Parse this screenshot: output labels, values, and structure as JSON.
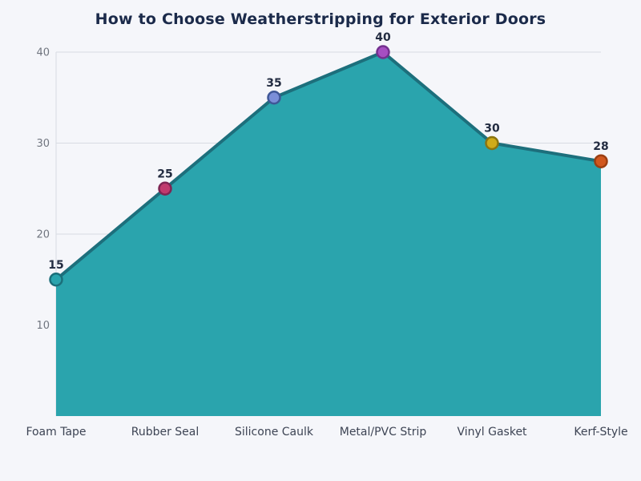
{
  "page": {
    "background_color": "#f5f6fa"
  },
  "chart_data": {
    "type": "area",
    "title": "How to Choose Weatherstripping for Exterior Doors",
    "categories": [
      "Foam Tape",
      "Rubber Seal",
      "Silicone Caulk",
      "Metal/PVC Strip",
      "Vinyl Gasket",
      "Kerf-Style"
    ],
    "values": [
      15,
      25,
      35,
      40,
      30,
      28
    ],
    "value_labels": [
      "15",
      "25",
      "35",
      "40",
      "30",
      "28"
    ],
    "xlabel": "",
    "ylabel": "",
    "yticks": [
      10,
      20,
      30,
      40
    ],
    "ylim": [
      0,
      40
    ],
    "grid": "horizontal",
    "legend_position": "none",
    "colors": {
      "background": "#f5f6fa",
      "area_fill": "#2aa4ad",
      "line": "#1d6f7c",
      "grid_line": "#d8dbe2",
      "axis_line": "#d8dbe2",
      "title_text": "#1b2a4a",
      "value_label_text": "#232c41",
      "ytick_text": "#70757f",
      "xlabel_text": "#3d4454",
      "point_fills": [
        "#2aa4ad",
        "#c03a6e",
        "#7b8ed8",
        "#a64ec2",
        "#cfab1a",
        "#d1581f"
      ],
      "point_strokes": [
        "#1b6f7a",
        "#7e2553",
        "#3f5797",
        "#73308f",
        "#8a7410",
        "#9c3f12"
      ]
    }
  }
}
